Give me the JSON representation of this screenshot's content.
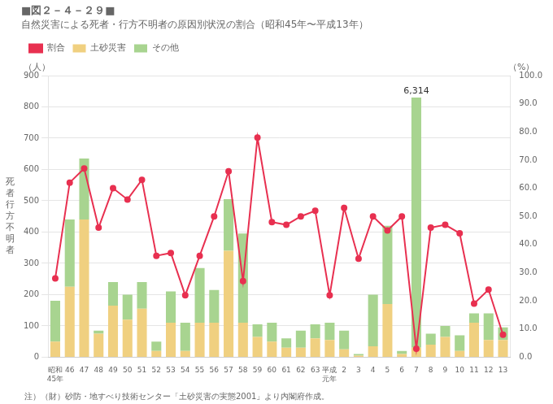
{
  "chart_data": {
    "type": "bar",
    "title": "■図２－４－２９■",
    "subtitle": "自然災害による死者・行方不明者の原因別状況の割合（昭和45年〜平成13年）",
    "ylabel": "死\n者\n行\n方\n不\n明\n者",
    "y_unit": "（人）",
    "y2_unit": "（%）",
    "note": "注）（財）砂防・地すべり技術センター「土砂災害の実態2001」より内閣府作成。",
    "categories": [
      "昭和\n45年",
      "46",
      "47",
      "48",
      "49",
      "50",
      "51",
      "52",
      "53",
      "54",
      "55",
      "56",
      "57",
      "58",
      "59",
      "60",
      "61",
      "62",
      "63",
      "平成\n元年",
      "2",
      "3",
      "4",
      "5",
      "6",
      "7",
      "8",
      "9",
      "10",
      "11",
      "12",
      "13"
    ],
    "series": [
      {
        "name": "土砂災害",
        "type": "bar",
        "color": "#f0d080",
        "values": [
          50,
          225,
          440,
          75,
          165,
          120,
          155,
          20,
          110,
          20,
          110,
          110,
          340,
          110,
          65,
          50,
          30,
          30,
          60,
          55,
          25,
          5,
          35,
          170,
          10,
          30,
          40,
          65,
          20,
          110,
          55,
          55
        ]
      },
      {
        "name": "その他",
        "type": "bar",
        "color": "#a8d490",
        "values": [
          130,
          215,
          195,
          10,
          75,
          80,
          85,
          30,
          100,
          90,
          175,
          105,
          165,
          285,
          40,
          60,
          30,
          55,
          45,
          55,
          60,
          5,
          165,
          250,
          10,
          800,
          35,
          35,
          50,
          30,
          85,
          40
        ]
      },
      {
        "name": "割合",
        "type": "line",
        "axis": "y2",
        "color": "#e83050",
        "marker": "circle",
        "values": [
          28,
          62,
          67,
          46,
          60,
          56,
          63,
          36,
          37,
          22,
          36,
          50,
          66,
          27,
          78,
          48,
          47,
          50,
          52,
          22,
          53,
          35,
          50,
          45,
          50,
          3,
          46,
          47,
          44,
          19,
          24,
          8
        ]
      }
    ],
    "stacked": true,
    "ylim": [
      0,
      900
    ],
    "yticks": [
      0,
      100,
      200,
      300,
      400,
      500,
      600,
      700,
      800,
      900
    ],
    "y2lim": [
      0,
      100
    ],
    "y2ticks": [
      {
        "value": 0,
        "label": "0.0"
      },
      {
        "value": 10,
        "label": "10.0"
      },
      {
        "value": 20,
        "label": "20.0"
      },
      {
        "value": 30,
        "label": "30.0"
      },
      {
        "value": 40,
        "label": "40.0"
      },
      {
        "value": 50,
        "label": "50.0"
      },
      {
        "value": 60,
        "label": "60.0"
      },
      {
        "value": 70,
        "label": "70.0"
      },
      {
        "value": 80,
        "label": "80.0"
      },
      {
        "value": 90,
        "label": "90.0"
      },
      {
        "value": 100,
        "label": "100.0"
      }
    ],
    "grid": "y",
    "legend": "upper left",
    "annotations": [
      {
        "text": "6,314",
        "x": "7",
        "y": 835
      }
    ]
  }
}
